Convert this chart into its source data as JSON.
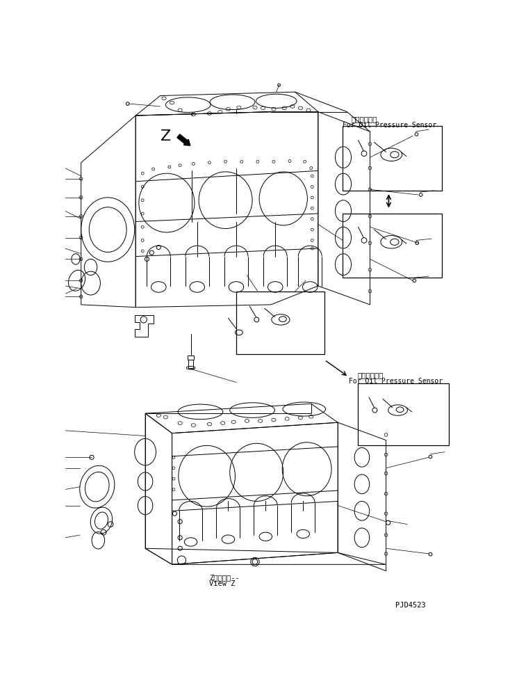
{
  "fig_width": 7.34,
  "fig_height": 9.86,
  "dpi": 100,
  "bg_color": "#ffffff",
  "line_color": "#000000",
  "label_top_jp": "油圧センサ用",
  "label_top_en": "For Oil Pressure Sensor",
  "label_bottom_jp": "油圧センサ用",
  "label_bottom_en": "For Oil Pressure Sensor",
  "view_z_jp": "Z　視　　--",
  "view_z_en": "View Z",
  "part_code": "PJD4523",
  "z_label": "Z"
}
